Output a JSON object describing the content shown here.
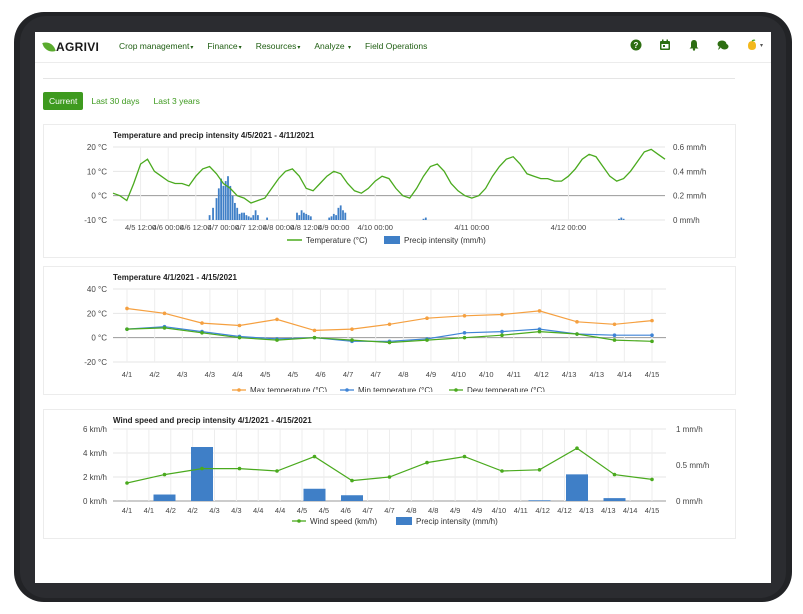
{
  "app": {
    "logo": "AGRIVI",
    "nav": [
      {
        "label": "Crop management"
      },
      {
        "label": "Finance"
      },
      {
        "label": "Resources"
      },
      {
        "label": "Analyze"
      },
      {
        "label": "Field Operations"
      }
    ],
    "icons": [
      "help-icon",
      "calendar-icon",
      "bell-icon",
      "chat-icon",
      "user-avatar-icon"
    ],
    "tabs": [
      "Current",
      "Last 30 days",
      "Last 3 years"
    ],
    "active_tab": "Current",
    "colors": {
      "brand": "#3e9a1f",
      "green_line": "#4aaa1e",
      "blue_bar": "#3f7fc7",
      "orange": "#f5a040",
      "blue_line": "#3f84d6"
    }
  },
  "chart_data": [
    {
      "type": "line",
      "title": "Temperature and precip intensity 4/5/2021 - 4/11/2021",
      "left_axis_ticks": [
        "20 °C",
        "10 °C",
        "0 °C",
        "-10 °C"
      ],
      "left_ylim": [
        -10,
        20
      ],
      "right_axis_ticks": [
        "0.6 mm/h",
        "0.4 mm/h",
        "0.2 mm/h",
        "0 mm/h"
      ],
      "right_ylim": [
        0,
        0.6
      ],
      "x_tick_labels": [
        "4/5 12:00",
        "4/6 00:00",
        "4/6 12:00",
        "4/7 00:00",
        "4/7 12:00",
        "4/8 00:00",
        "4/8 12:00",
        "4/9 00:00",
        "4/10 00:00",
        "4/11 00:00",
        "4/12 00:00"
      ],
      "series": [
        {
          "name": "Temperature (°C)",
          "kind": "line",
          "color": "#4aaa1e",
          "points": [
            [
              0,
              1
            ],
            [
              6,
              0
            ],
            [
              12,
              -2
            ],
            [
              18,
              5
            ],
            [
              24,
              13
            ],
            [
              30,
              15
            ],
            [
              36,
              10
            ],
            [
              42,
              8
            ],
            [
              48,
              6
            ],
            [
              54,
              5
            ],
            [
              60,
              5
            ],
            [
              66,
              4
            ],
            [
              72,
              8
            ],
            [
              78,
              11
            ],
            [
              84,
              12
            ],
            [
              90,
              9
            ],
            [
              96,
              5
            ],
            [
              102,
              3
            ],
            [
              108,
              0
            ],
            [
              114,
              -1
            ],
            [
              120,
              -3
            ],
            [
              126,
              -2
            ],
            [
              132,
              -1
            ],
            [
              138,
              3
            ],
            [
              144,
              7
            ],
            [
              150,
              10
            ],
            [
              156,
              11
            ],
            [
              162,
              8
            ],
            [
              168,
              3
            ],
            [
              174,
              2
            ],
            [
              180,
              5
            ],
            [
              186,
              8
            ],
            [
              192,
              10
            ],
            [
              198,
              9
            ],
            [
              204,
              5
            ],
            [
              210,
              2
            ],
            [
              216,
              1
            ],
            [
              222,
              3
            ],
            [
              228,
              6
            ],
            [
              234,
              8
            ],
            [
              240,
              7
            ],
            [
              246,
              3
            ],
            [
              252,
              0
            ],
            [
              258,
              -1
            ],
            [
              264,
              3
            ],
            [
              270,
              8
            ],
            [
              276,
              12
            ],
            [
              282,
              13
            ],
            [
              288,
              10
            ],
            [
              294,
              5
            ],
            [
              300,
              2
            ],
            [
              306,
              0
            ],
            [
              312,
              -1
            ],
            [
              318,
              0
            ],
            [
              324,
              3
            ],
            [
              330,
              8
            ],
            [
              336,
              12
            ],
            [
              342,
              15
            ],
            [
              348,
              16
            ],
            [
              354,
              13
            ],
            [
              360,
              9
            ],
            [
              366,
              8
            ],
            [
              372,
              7
            ],
            [
              378,
              7
            ],
            [
              384,
              6
            ],
            [
              390,
              6
            ],
            [
              396,
              8
            ],
            [
              402,
              11
            ],
            [
              408,
              15
            ],
            [
              414,
              17
            ],
            [
              420,
              16
            ],
            [
              426,
              12
            ],
            [
              432,
              8
            ],
            [
              438,
              6
            ],
            [
              444,
              7
            ],
            [
              450,
              10
            ],
            [
              456,
              14
            ],
            [
              462,
              18
            ],
            [
              468,
              19
            ],
            [
              474,
              17
            ],
            [
              480,
              15
            ]
          ]
        },
        {
          "name": "Precip intensity (mm/h)",
          "kind": "bar",
          "color": "#3f7fc7",
          "points": [
            [
              84,
              0.04
            ],
            [
              87,
              0.1
            ],
            [
              90,
              0.18
            ],
            [
              92,
              0.26
            ],
            [
              94,
              0.34
            ],
            [
              96,
              0.28
            ],
            [
              98,
              0.32
            ],
            [
              100,
              0.36
            ],
            [
              102,
              0.28
            ],
            [
              104,
              0.2
            ],
            [
              106,
              0.14
            ],
            [
              108,
              0.1
            ],
            [
              110,
              0.05
            ],
            [
              112,
              0.06
            ],
            [
              114,
              0.06
            ],
            [
              116,
              0.04
            ],
            [
              118,
              0.03
            ],
            [
              120,
              0.02
            ],
            [
              122,
              0.04
            ],
            [
              124,
              0.08
            ],
            [
              126,
              0.04
            ],
            [
              134,
              0.02
            ],
            [
              160,
              0.06
            ],
            [
              162,
              0.04
            ],
            [
              164,
              0.08
            ],
            [
              166,
              0.06
            ],
            [
              168,
              0.05
            ],
            [
              170,
              0.04
            ],
            [
              172,
              0.03
            ],
            [
              188,
              0.02
            ],
            [
              190,
              0.03
            ],
            [
              192,
              0.05
            ],
            [
              194,
              0.04
            ],
            [
              196,
              0.1
            ],
            [
              198,
              0.12
            ],
            [
              200,
              0.08
            ],
            [
              202,
              0.06
            ],
            [
              270,
              0.01
            ],
            [
              272,
              0.02
            ],
            [
              440,
              0.01
            ],
            [
              442,
              0.02
            ],
            [
              444,
              0.01
            ]
          ]
        }
      ],
      "legend": [
        "Temperature (°C)",
        "Precip intensity (mm/h)"
      ]
    },
    {
      "type": "line",
      "title": "Temperature 4/1/2021 - 4/15/2021",
      "left_axis_ticks": [
        "40 °C",
        "20 °C",
        "0 °C",
        "-20 °C"
      ],
      "ylim": [
        -20,
        40
      ],
      "x_tick_labels": [
        "4/1",
        "4/2",
        "4/3",
        "4/3",
        "4/4",
        "4/5",
        "4/5",
        "4/6",
        "4/7",
        "4/7",
        "4/8",
        "4/9",
        "4/10",
        "4/10",
        "4/11",
        "4/12",
        "4/13",
        "4/13",
        "4/14",
        "4/15"
      ],
      "series": [
        {
          "name": "Max temperature (°C)",
          "color": "#f5a040",
          "values": [
            24,
            20,
            12,
            10,
            15,
            6,
            7,
            11,
            16,
            18,
            19,
            22,
            13,
            11,
            14
          ]
        },
        {
          "name": "Min temperature (°C)",
          "color": "#3f84d6",
          "values": [
            7,
            9,
            5,
            1,
            -1,
            0,
            -3,
            -3,
            -1,
            4,
            5,
            7,
            3,
            2,
            2
          ]
        },
        {
          "name": "Dew temperature (°C)",
          "color": "#4aaa1e",
          "values": [
            7,
            8,
            4,
            0,
            -2,
            0,
            -2,
            -4,
            -2,
            0,
            2,
            5,
            3,
            -2,
            -3
          ]
        }
      ],
      "legend": [
        "Max temperature (°C)",
        "Min temperature (°C)",
        "Dew temperature (°C)"
      ]
    },
    {
      "type": "bar",
      "title": "Wind speed and precip intensity 4/1/2021 - 4/15/2021",
      "left_axis_ticks": [
        "6 km/h",
        "4 km/h",
        "2 km/h",
        "0 km/h"
      ],
      "left_ylim": [
        0,
        6
      ],
      "right_axis_ticks": [
        "1 mm/h",
        "0.5 mm/h",
        "0 mm/h"
      ],
      "right_ylim": [
        0,
        1
      ],
      "x_tick_labels": [
        "4/1",
        "4/1",
        "4/2",
        "4/2",
        "4/3",
        "4/3",
        "4/4",
        "4/4",
        "4/5",
        "4/5",
        "4/6",
        "4/7",
        "4/7",
        "4/8",
        "4/8",
        "4/9",
        "4/9",
        "4/10",
        "4/11",
        "4/12",
        "4/12",
        "4/13",
        "4/13",
        "4/14",
        "4/15"
      ],
      "series": [
        {
          "name": "Wind speed (km/h)",
          "kind": "line",
          "color": "#4aaa1e",
          "values": [
            1.5,
            2.2,
            2.7,
            2.7,
            2.5,
            3.7,
            1.7,
            2.0,
            3.2,
            3.7,
            2.5,
            2.6,
            4.4,
            2.2,
            1.8
          ]
        },
        {
          "name": "Precip intensity (mm/h)",
          "kind": "bar",
          "color": "#3f7fc7",
          "values": [
            0,
            0.09,
            0.75,
            0,
            0,
            0.17,
            0.08,
            0,
            0,
            0,
            0,
            0.01,
            0.37,
            0.04,
            0
          ]
        }
      ],
      "legend": [
        "Wind speed (km/h)",
        "Precip intensity (mm/h)"
      ]
    }
  ]
}
